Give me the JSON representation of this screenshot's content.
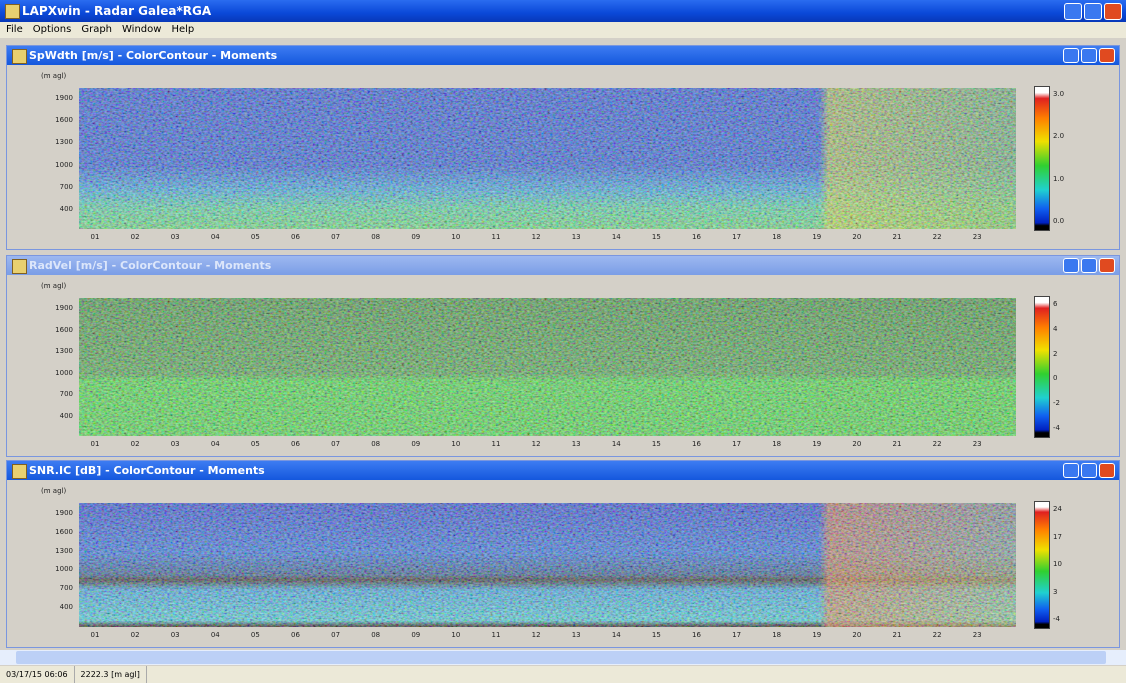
{
  "window": {
    "title": "LAPXwin - Radar Galea*RGA"
  },
  "menu": [
    "File",
    "Options",
    "Graph",
    "Window",
    "Help"
  ],
  "panels": [
    {
      "title": "SpWdth [m/s] - ColorContour - Moments",
      "y_label": "(m agl)",
      "yticks": [
        "1900",
        "1600",
        "1300",
        "1000",
        "700",
        "400"
      ],
      "colorbar_labels": [
        "3.0",
        "2.0",
        "1.0",
        "0.0"
      ]
    },
    {
      "title": "RadVel [m/s] - ColorContour - Moments",
      "y_label": "(m agl)",
      "yticks": [
        "1900",
        "1600",
        "1300",
        "1000",
        "700",
        "400"
      ],
      "colorbar_labels": [
        "6",
        "4",
        "2",
        "0",
        "-2",
        "-4"
      ]
    },
    {
      "title": "SNR.IC [dB] - ColorContour - Moments",
      "y_label": "(m agl)",
      "yticks": [
        "1900",
        "1600",
        "1300",
        "1000",
        "700",
        "400"
      ],
      "colorbar_labels": [
        "24",
        "17",
        "10",
        "3",
        "-4"
      ]
    }
  ],
  "x_ticks": [
    "01",
    "02",
    "03",
    "04",
    "05",
    "06",
    "07",
    "08",
    "09",
    "10",
    "11",
    "12",
    "13",
    "14",
    "15",
    "16",
    "17",
    "18",
    "19",
    "20",
    "21",
    "22",
    "23"
  ],
  "status": [
    "03/17/15 06:06",
    "2222.3 [m agl]"
  ]
}
